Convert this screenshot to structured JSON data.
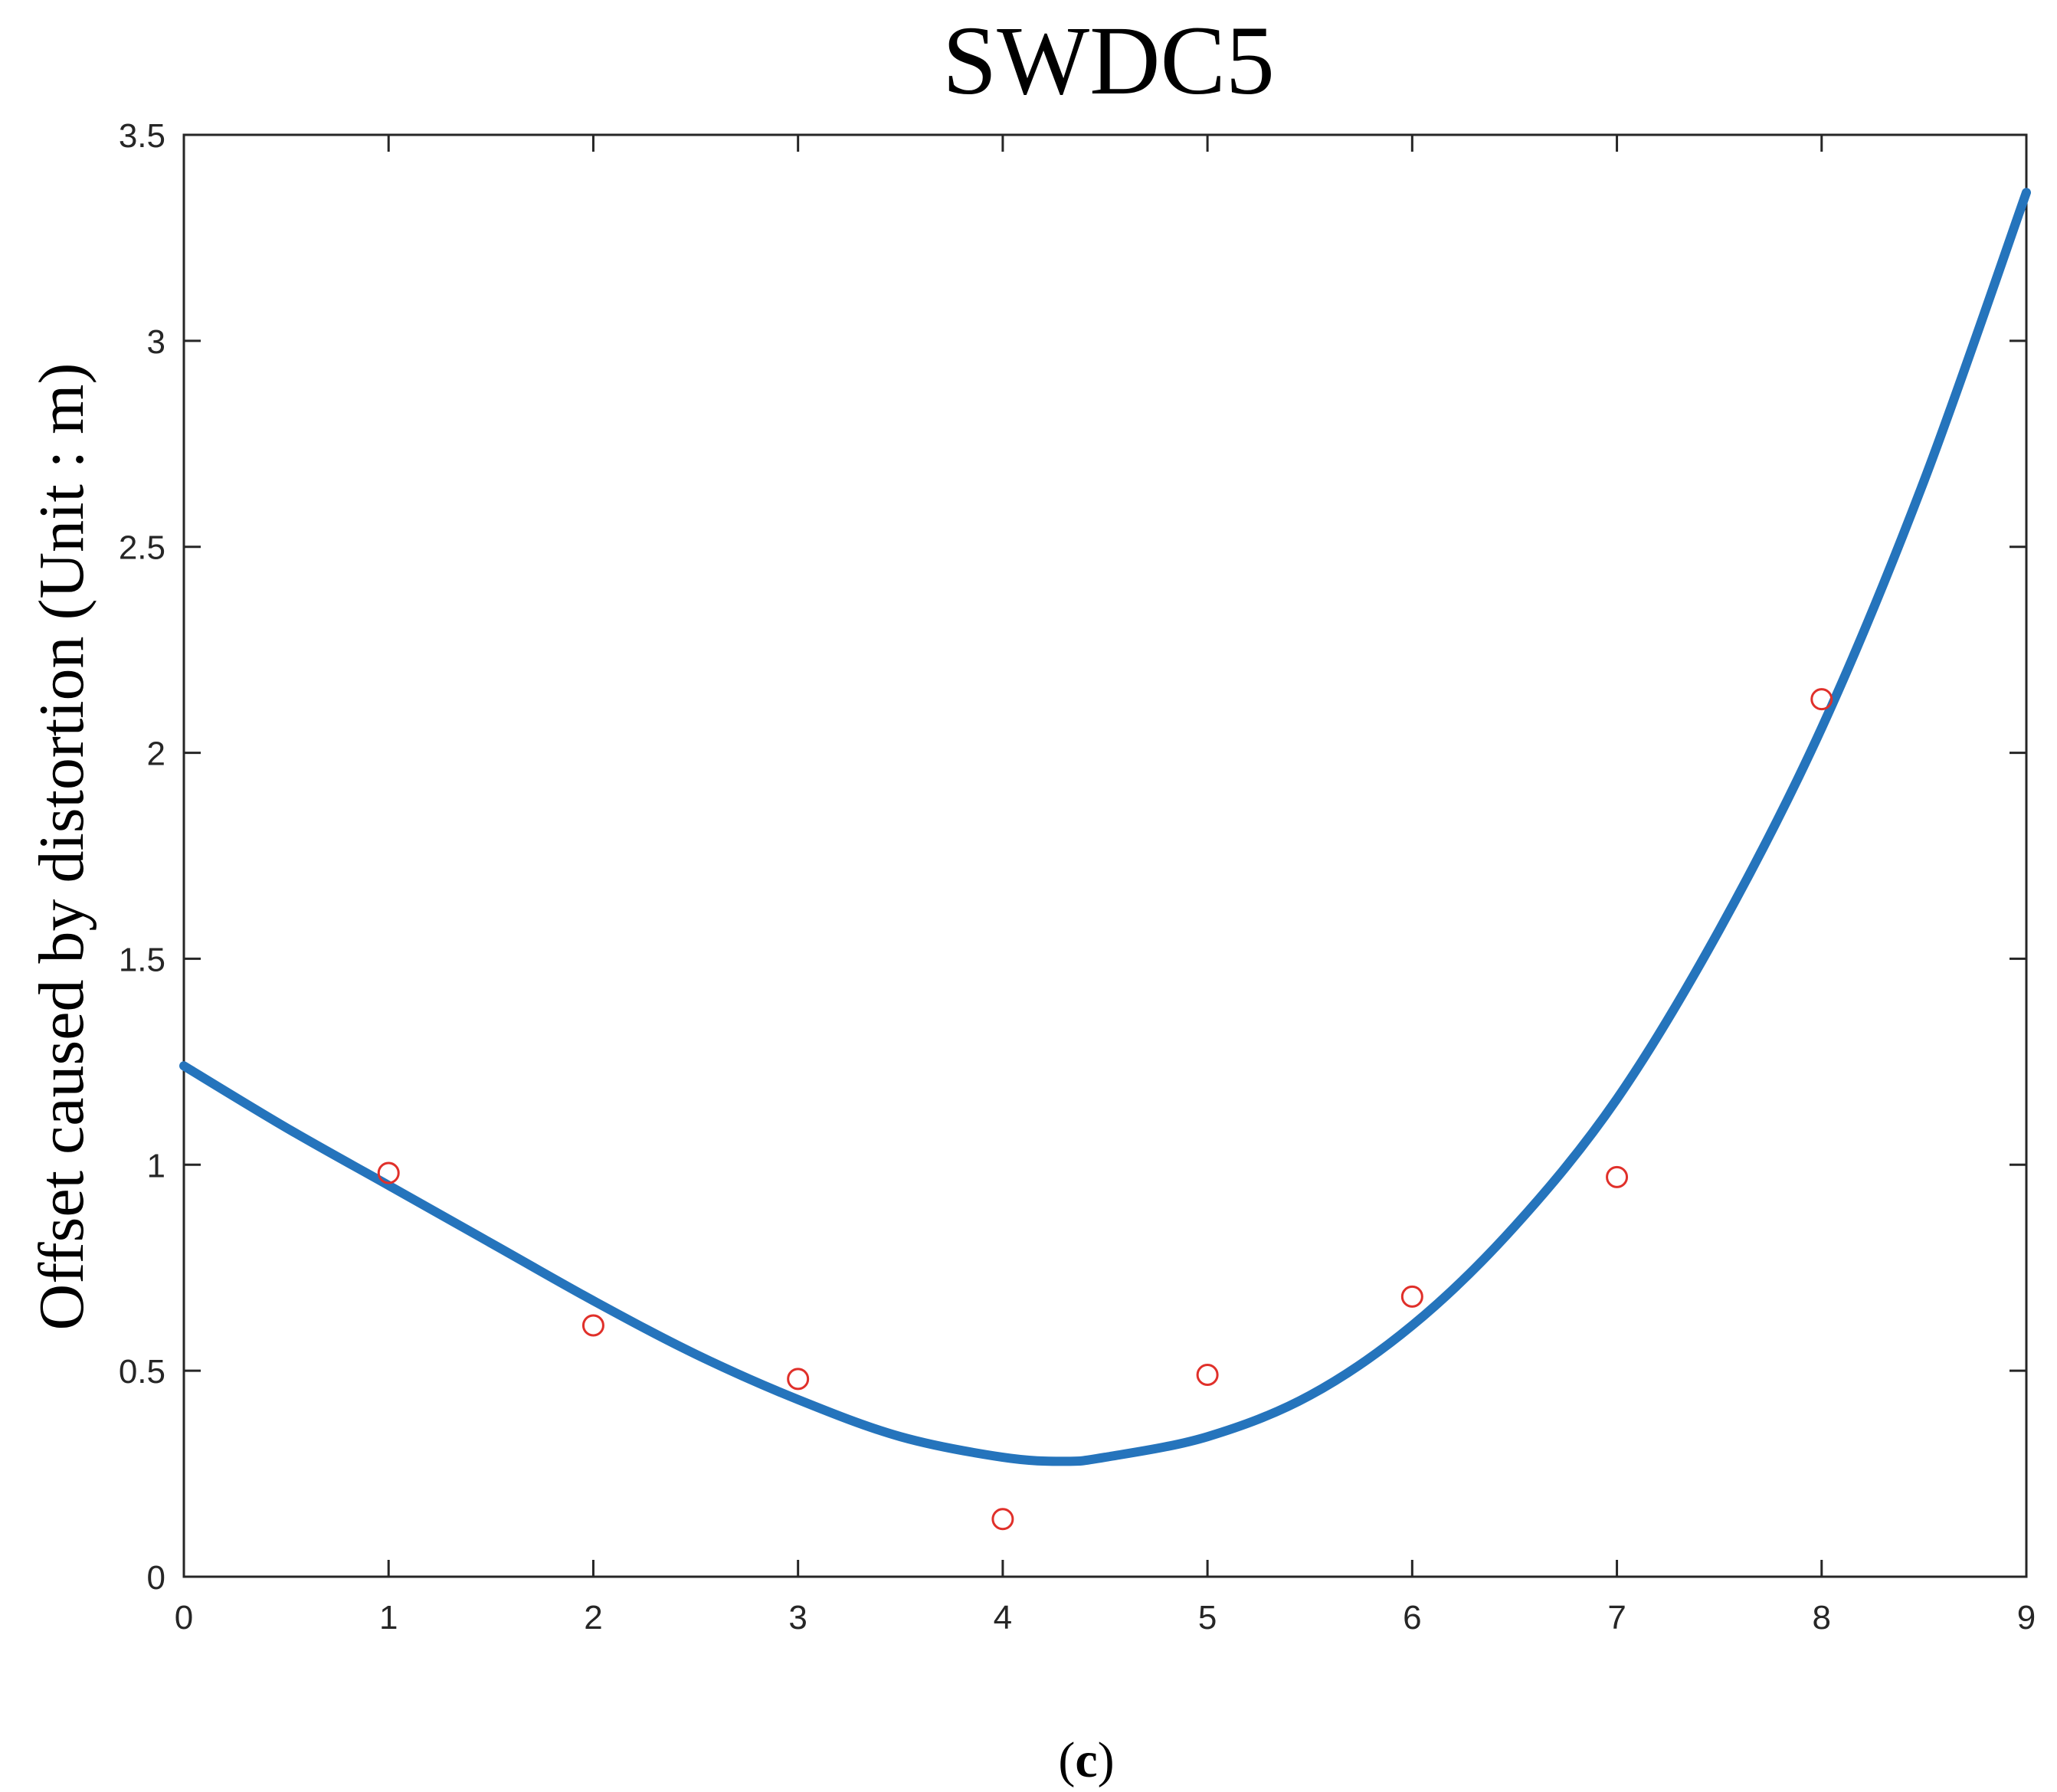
{
  "chart_data": {
    "type": "scatter",
    "title": "SWDC5",
    "xlabel": "",
    "ylabel": "Offset caused by distortion   (Unit : m)",
    "xlim": [
      0,
      9
    ],
    "ylim": [
      0,
      3.5
    ],
    "x_ticks": [
      "0",
      "1",
      "2",
      "3",
      "4",
      "5",
      "6",
      "7",
      "8",
      "9"
    ],
    "y_ticks": [
      "0",
      "0.5",
      "1",
      "1.5",
      "2",
      "2.5",
      "3",
      "3.5"
    ],
    "grid": false,
    "series": [
      {
        "kind": "points",
        "marker": "open-circle",
        "color": "#e0302a",
        "x": [
          1,
          2,
          3,
          4,
          5,
          6,
          7,
          8
        ],
        "y": [
          0.98,
          0.61,
          0.48,
          0.14,
          0.49,
          0.68,
          0.97,
          2.13
        ]
      },
      {
        "kind": "fitted-curve",
        "color": "#2574bc",
        "x": [
          0,
          0.5,
          1,
          1.5,
          2,
          2.5,
          3,
          3.5,
          4,
          4.3,
          4.5,
          5,
          5.5,
          6,
          6.5,
          7,
          7.5,
          8,
          8.5,
          9
        ],
        "y": [
          1.24,
          1.09,
          0.95,
          0.81,
          0.67,
          0.54,
          0.43,
          0.34,
          0.29,
          0.28,
          0.29,
          0.34,
          0.44,
          0.61,
          0.85,
          1.16,
          1.57,
          2.06,
          2.66,
          3.36
        ]
      }
    ]
  },
  "caption": {
    "open": "(",
    "letter": "c",
    "close": ")"
  }
}
